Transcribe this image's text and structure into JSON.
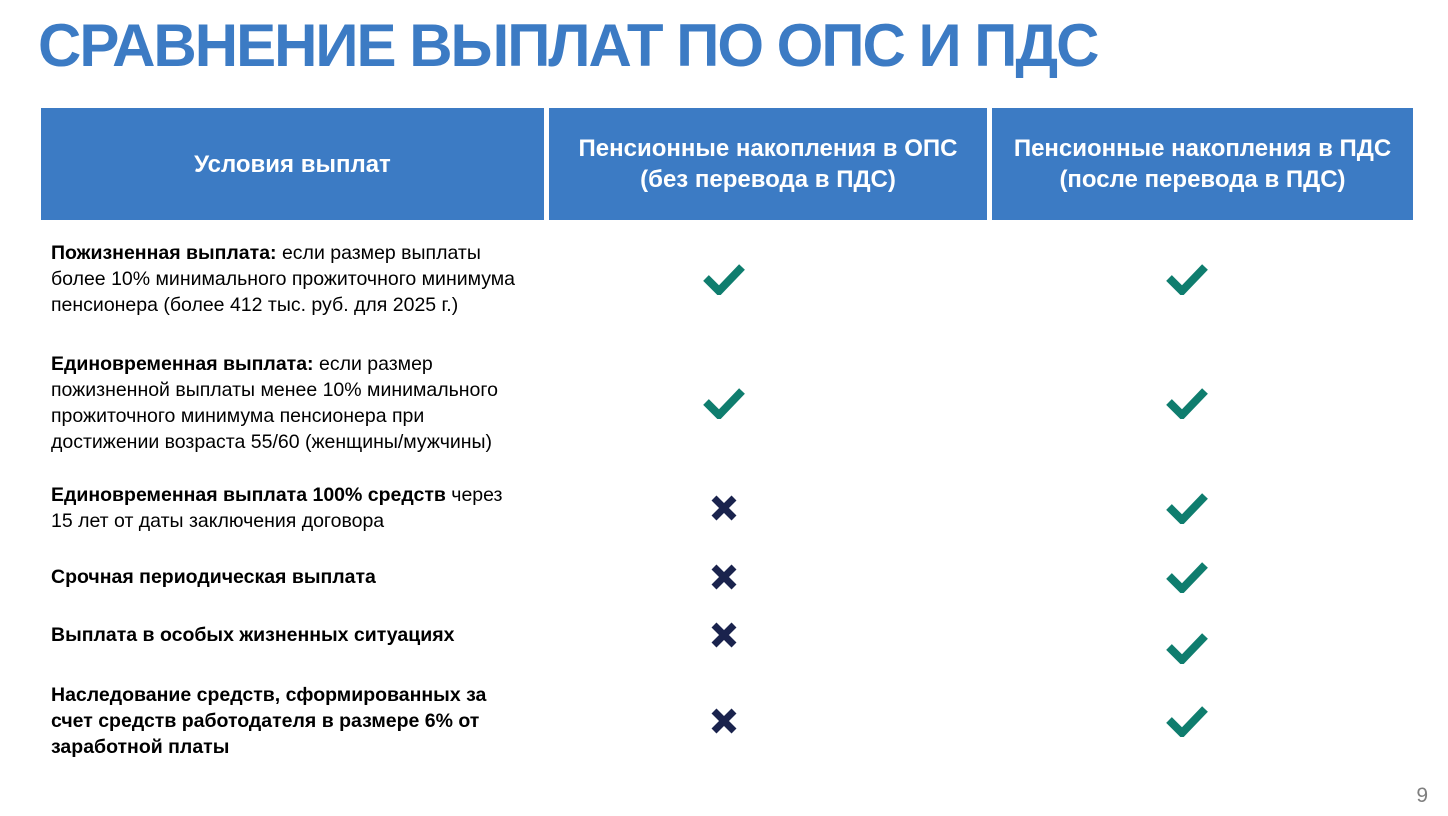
{
  "title": "СРАВНЕНИЕ ВЫПЛАТ ПО ОПС И ПДС",
  "page_number": "9",
  "colors": {
    "accent_blue": "#3C7BC4",
    "check_teal": "#0F7D6E",
    "cross_navy": "#1A234D",
    "page_number_gray": "#7F7F7F"
  },
  "icons": {
    "check": "check-icon",
    "cross": "cross-icon"
  },
  "table": {
    "headers": [
      {
        "line1": "Условия выплат",
        "line2": ""
      },
      {
        "line1": "Пенсионные накопления в ОПС",
        "line2": "(без перевода в ПДС)"
      },
      {
        "line1": "Пенсионные накопления в ПДС",
        "line2": "(после перевода в ПДС)"
      }
    ],
    "rows": [
      {
        "bold": "Пожизненная выплата:",
        "regular": " если размер выплаты более 10% минимального прожиточного минимума пенсионера (более 412 тыс. руб. для 2025 г.)",
        "ops": "check",
        "pds": "check"
      },
      {
        "bold": "Единовременная выплата:",
        "regular": " если размер пожизненной выплаты менее 10% минимального прожиточного минимума пенсионера при достижении возраста 55/60 (женщины/мужчины)",
        "ops": "check",
        "pds": "check"
      },
      {
        "bold": "Единовременная выплата 100% средств",
        "regular": " через 15 лет от даты заключения договора",
        "ops": "cross",
        "pds": "check"
      },
      {
        "bold": "Срочная периодическая выплата",
        "regular": "",
        "ops": "cross",
        "pds": "check"
      },
      {
        "bold": "Выплата в особых жизненных ситуациях",
        "regular": "",
        "ops": "cross",
        "pds": "check"
      },
      {
        "bold": "Наследование средств, сформированных за счет средств работодателя в размере 6% от заработной платы",
        "regular": "",
        "ops": "cross",
        "pds": "check"
      }
    ]
  }
}
